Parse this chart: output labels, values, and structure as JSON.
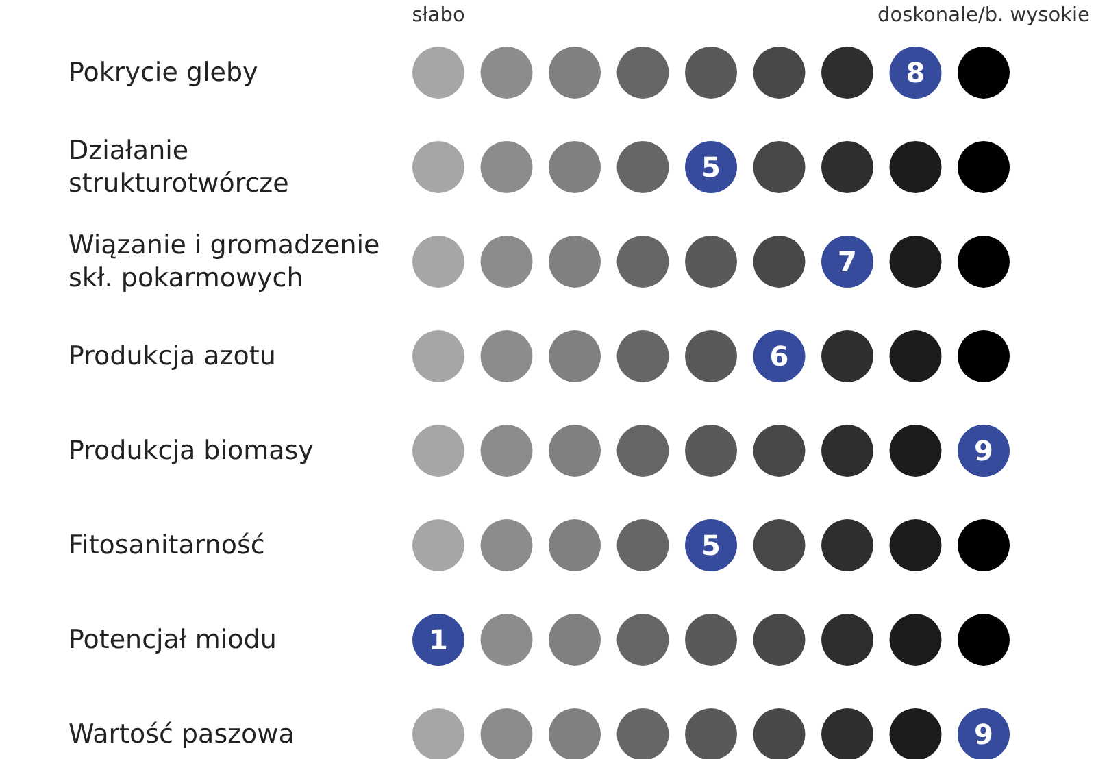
{
  "chart_data": {
    "type": "heatmap",
    "categories": [
      "słabo",
      null,
      null,
      null,
      null,
      null,
      null,
      null,
      "doskonale/b. wysokie"
    ],
    "y_categories": [
      "Pokrycie gleby",
      "Działanie strukturotwórcze",
      "Wiązanie i gromadzenie skł. pokarmowych",
      "Produkcja azotu",
      "Produkcja biomasy",
      "Fitosanitarność",
      "Potencjał miodu",
      "Wartość paszowa"
    ],
    "cells": [
      [
        null,
        null,
        null,
        null,
        null,
        null,
        null,
        8,
        null
      ],
      [
        null,
        null,
        null,
        null,
        5,
        null,
        null,
        null,
        null
      ],
      [
        null,
        null,
        null,
        null,
        null,
        null,
        7,
        null,
        null
      ],
      [
        null,
        null,
        null,
        null,
        null,
        6,
        null,
        null,
        null
      ],
      [
        null,
        null,
        null,
        null,
        null,
        null,
        null,
        null,
        9
      ],
      [
        null,
        null,
        null,
        null,
        5,
        null,
        null,
        null,
        null
      ],
      [
        1,
        null,
        null,
        null,
        null,
        null,
        null,
        null,
        null
      ],
      [
        null,
        null,
        null,
        null,
        null,
        null,
        null,
        null,
        9
      ]
    ],
    "color": "#374b9c",
    "data_labels": true
  }
}
